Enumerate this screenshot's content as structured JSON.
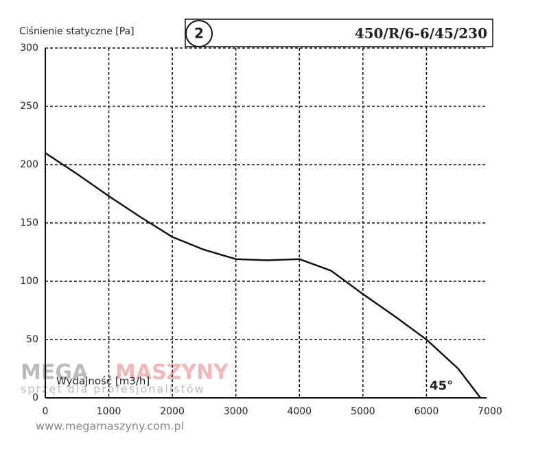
{
  "chart_data": {
    "type": "line",
    "title": "Ciśnienie statyczne [Pa]",
    "x_label": "Wydajność [m3/h]",
    "badge": "2",
    "model": "450/R/6-6/45/230",
    "annotation": "45°",
    "watermark": {
      "brand_left": "MEGA",
      "brand_right": "MASZYNY",
      "tagline": "sprzęt dla profesjonalistów",
      "url": "www.megamaszyny.com.pl"
    },
    "series": [
      {
        "name": "45°",
        "color": "#111111",
        "x": [
          0,
          500,
          1000,
          1500,
          2000,
          2500,
          3000,
          3500,
          4000,
          4500,
          5000,
          5500,
          6000,
          6500,
          6850
        ],
        "values": [
          210,
          192,
          173,
          155,
          138,
          127,
          119,
          118,
          119,
          109,
          89,
          70,
          50,
          25,
          0
        ]
      }
    ],
    "xlim": [
      0,
      7000
    ],
    "xticks": [
      0,
      1000,
      2000,
      3000,
      4000,
      5000,
      6000,
      7000
    ],
    "ylim": [
      0,
      300
    ],
    "yticks": [
      0,
      50,
      100,
      150,
      200,
      250,
      300
    ],
    "grid": true
  }
}
